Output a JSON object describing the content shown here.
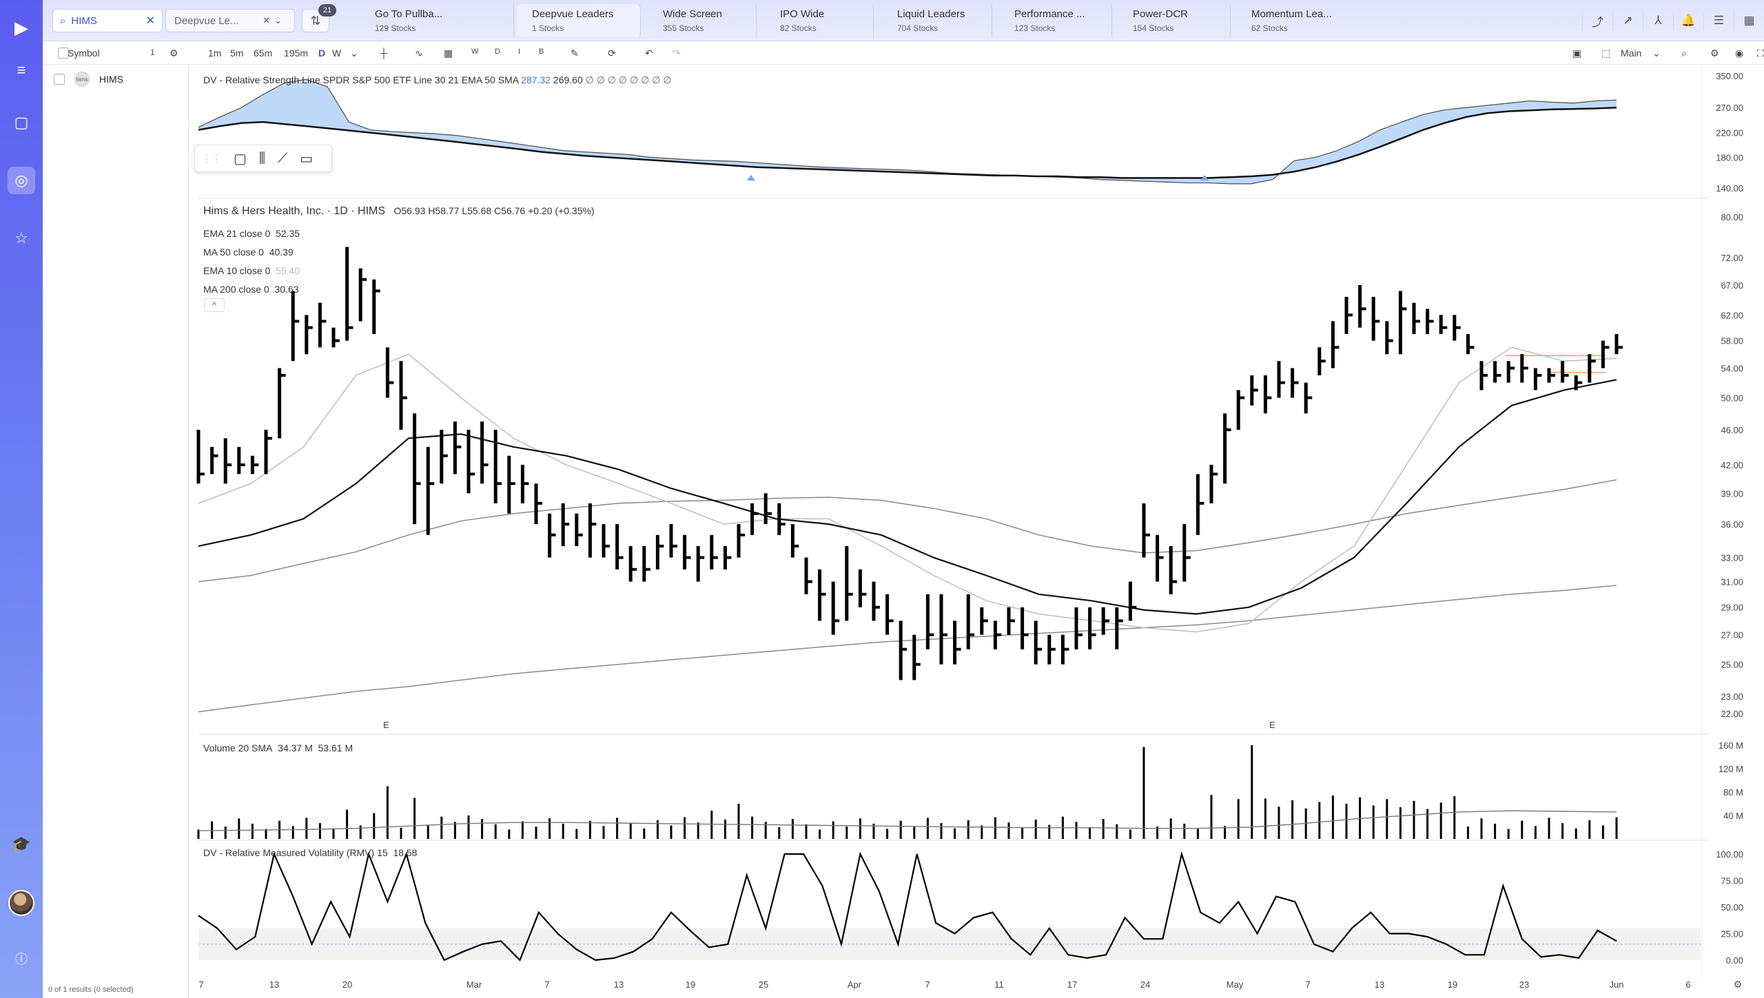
{
  "search": {
    "value": "HIMS"
  },
  "watchlist_select": {
    "value": "Deepvue Le..."
  },
  "filter_badge": "21",
  "tabs": [
    {
      "label": "Go To Pullba...",
      "count": "129 Stocks"
    },
    {
      "label": "Deepvue Leaders",
      "count": "1 Stocks"
    },
    {
      "label": "Wide Screen",
      "count": "355 Stocks"
    },
    {
      "label": "IPO Wide",
      "count": "82 Stocks"
    },
    {
      "label": "Liquid Leaders",
      "count": "704 Stocks"
    },
    {
      "label": "Performance ...",
      "count": "123 Stocks"
    },
    {
      "label": "Power-DCR",
      "count": "154 Stocks"
    },
    {
      "label": "Momentum Lea...",
      "count": "62 Stocks"
    }
  ],
  "toolbar": {
    "symbol_label": "Symbol",
    "symbol_count": "1",
    "intervals": [
      "1m",
      "5m",
      "65m",
      "195m",
      "D",
      "W"
    ],
    "active_interval": "D",
    "period_btns": [
      "W",
      "D",
      "I",
      "B"
    ],
    "layout_label": "Main"
  },
  "symbols": [
    {
      "ticker": "HIMS",
      "logo": "hims"
    }
  ],
  "results_text": "0 of 1 results (0 selected)",
  "rs_pane": {
    "legend": "DV - Relative Strength Line SPDR S&P 500 ETF Line 30 21 EMA 50 SMA",
    "value1": "287.32",
    "value2": "269.60",
    "tail": "∅ ∅ ∅ ∅ ∅ ∅ ∅ ∅",
    "y_ticks": [
      "350.00",
      "270.00",
      "220.00",
      "180.00",
      "140.00"
    ]
  },
  "price_pane": {
    "title": "Hims & Hers Health, Inc. · 1D · HIMS",
    "ohlc": "O56.93  H58.77  L55.68  C56.76  +0.20 (+0.35%)",
    "studies": [
      {
        "name": "EMA 21 close 0",
        "value": "52.35"
      },
      {
        "name": "MA 50 close 0",
        "value": "40.39"
      },
      {
        "name": "EMA 10 close 0",
        "value": "55.40"
      },
      {
        "name": "MA 200 close 0",
        "value": "30.63"
      }
    ],
    "y_ticks": [
      "80.00",
      "72.00",
      "67.00",
      "62.00",
      "58.00",
      "54.00",
      "50.00",
      "46.00",
      "42.00",
      "39.00",
      "36.00",
      "33.00",
      "31.00",
      "29.00",
      "27.00",
      "25.00",
      "23.00",
      "22.00"
    ],
    "earnings_markers": [
      "E",
      "E"
    ]
  },
  "volume_pane": {
    "legend": "Volume 20 SMA",
    "value1": "34.37 M",
    "value2": "53.61 M",
    "y_ticks": [
      "160 M",
      "120 M",
      "80 M",
      "40 M"
    ]
  },
  "rmv_pane": {
    "legend": "DV - Relative Measured Volatility (RMV) 15",
    "value": "18.58",
    "y_ticks": [
      "100.00",
      "75.00",
      "50.00",
      "25.00",
      "0.00"
    ]
  },
  "x_ticks": [
    "7",
    "13",
    "20",
    "Mar",
    "7",
    "13",
    "19",
    "25",
    "Apr",
    "7",
    "11",
    "17",
    "24",
    "May",
    "7",
    "13",
    "19",
    "23",
    "Jun",
    "6"
  ],
  "colors": {
    "accent": "#5b5df0",
    "rs_fill": "#a9cdf6",
    "ema21": "#111111",
    "ema10": "#bdbdbd",
    "ma50": "#8a8a8a",
    "ma200": "#8a8a8a",
    "pivot": "#f4b183",
    "earnings_red": "#e04b4b",
    "earnings_teal": "#2aa6a0"
  }
}
